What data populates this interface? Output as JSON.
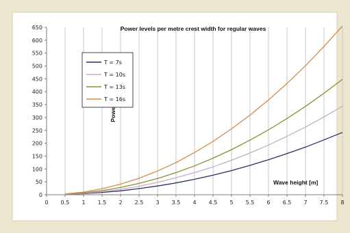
{
  "chart_data": {
    "type": "line",
    "title": "Power levels per metre crest width for regular waves",
    "xlabel": "Wave height [m]",
    "ylabel": "Power level [kW/m]",
    "xlim": [
      0,
      8
    ],
    "ylim": [
      0,
      600
    ],
    "x_ticks": [
      "0",
      "0.5",
      "1",
      "1.5",
      "2",
      "2.5",
      "3",
      "3.5",
      "4",
      "4.5",
      "5",
      "5.5",
      "6",
      "6.5",
      "7",
      "7.5",
      "8"
    ],
    "y_ticks": [
      "0",
      "50",
      "100",
      "150",
      "200",
      "250",
      "300",
      "350",
      "400",
      "450",
      "500",
      "550",
      "600",
      "650"
    ],
    "grid": "vertical",
    "legend_position": "top-left",
    "x": [
      0.5,
      1,
      1.5,
      2,
      2.5,
      3,
      3.5,
      4,
      4.5,
      5,
      5.5,
      6,
      6.5,
      7,
      7.5,
      8
    ],
    "series": [
      {
        "name": "T = 7s",
        "color": "#2d2a6b",
        "values": [
          1,
          4,
          9,
          15,
          24,
          34,
          46,
          60,
          76,
          94,
          114,
          136,
          160,
          185,
          213,
          242
        ]
      },
      {
        "name": "T = 10s",
        "color": "#c7a9c9",
        "values": [
          1,
          5,
          12,
          21,
          33,
          48,
          66,
          86,
          108,
          134,
          162,
          193,
          227,
          263,
          302,
          344
        ]
      },
      {
        "name": "T = 13s",
        "color": "#8c8c2f",
        "values": [
          2,
          7,
          16,
          28,
          44,
          63,
          86,
          112,
          142,
          175,
          212,
          252,
          296,
          343,
          394,
          448
        ]
      },
      {
        "name": "T = 16s",
        "color": "#d08a4a",
        "values": [
          3,
          10,
          23,
          41,
          64,
          92,
          125,
          164,
          207,
          256,
          309,
          368,
          432,
          501,
          576,
          655
        ]
      }
    ]
  }
}
